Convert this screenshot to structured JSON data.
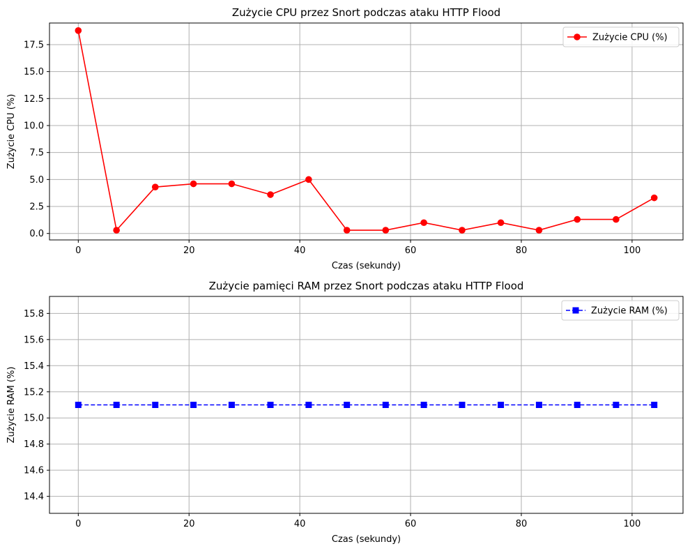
{
  "chart_data": [
    {
      "type": "line",
      "title": "Zużycie CPU przez Snort podczas ataku HTTP Flood",
      "xlabel": "Czas (sekundy)",
      "ylabel": "Zużycie CPU (%)",
      "xlim": [
        -5.2,
        109.2
      ],
      "ylim": [
        -0.6,
        19.5
      ],
      "xticks": [
        0,
        20,
        40,
        60,
        80,
        100
      ],
      "xtick_labels": [
        "0",
        "20",
        "40",
        "60",
        "80",
        "100"
      ],
      "yticks": [
        0,
        2.5,
        5,
        7.5,
        10,
        12.5,
        15,
        17.5
      ],
      "ytick_labels": [
        "0.0",
        "2.5",
        "5.0",
        "7.5",
        "10.0",
        "12.5",
        "15.0",
        "17.5"
      ],
      "grid": true,
      "legend_position": "top-right",
      "series": [
        {
          "name": "Zużycie CPU (%)",
          "color": "#ff0000",
          "marker": "circle",
          "linestyle": "solid",
          "x": [
            0,
            6.9,
            13.9,
            20.8,
            27.7,
            34.7,
            41.6,
            48.5,
            55.5,
            62.4,
            69.3,
            76.3,
            83.2,
            90.1,
            97.1,
            104.0
          ],
          "y": [
            18.8,
            0.3,
            4.3,
            4.6,
            4.6,
            3.6,
            5.0,
            0.3,
            0.3,
            1.0,
            0.3,
            1.0,
            0.3,
            1.3,
            1.3,
            3.3
          ]
        }
      ]
    },
    {
      "type": "line",
      "title": "Zużycie pamięci RAM przez Snort podczas ataku HTTP Flood",
      "xlabel": "Czas (sekundy)",
      "ylabel": "Zużycie RAM (%)",
      "xlim": [
        -5.2,
        109.2
      ],
      "ylim": [
        14.27,
        15.93
      ],
      "xticks": [
        0,
        20,
        40,
        60,
        80,
        100
      ],
      "xtick_labels": [
        "0",
        "20",
        "40",
        "60",
        "80",
        "100"
      ],
      "yticks": [
        14.4,
        14.6,
        14.8,
        15.0,
        15.2,
        15.4,
        15.6,
        15.8
      ],
      "ytick_labels": [
        "14.4",
        "14.6",
        "14.8",
        "15.0",
        "15.2",
        "15.4",
        "15.6",
        "15.8"
      ],
      "grid": true,
      "legend_position": "top-right",
      "series": [
        {
          "name": "Zużycie RAM (%)",
          "color": "#0000ff",
          "marker": "square",
          "linestyle": "dashed",
          "x": [
            0,
            6.9,
            13.9,
            20.8,
            27.7,
            34.7,
            41.6,
            48.5,
            55.5,
            62.4,
            69.3,
            76.3,
            83.2,
            90.1,
            97.1,
            104.0
          ],
          "y": [
            15.1,
            15.1,
            15.1,
            15.1,
            15.1,
            15.1,
            15.1,
            15.1,
            15.1,
            15.1,
            15.1,
            15.1,
            15.1,
            15.1,
            15.1,
            15.1
          ]
        }
      ]
    }
  ]
}
